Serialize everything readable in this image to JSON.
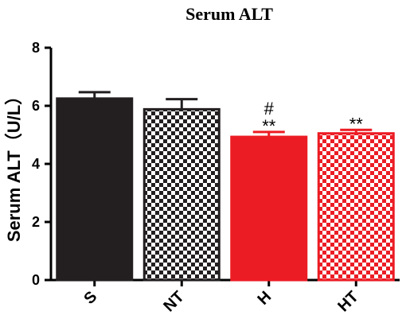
{
  "chart_data": {
    "type": "bar",
    "title": "Serum ALT",
    "ylabel": "Serum ALT（U/L）",
    "xlabel": "",
    "ylim": [
      0,
      8
    ],
    "yticks": [
      "0",
      "2",
      "4",
      "6",
      "8"
    ],
    "categories": [
      "S",
      "NT",
      "H",
      "HT"
    ],
    "values": [
      6.25,
      5.88,
      4.93,
      5.05
    ],
    "errors": [
      0.22,
      0.35,
      0.17,
      0.12
    ],
    "fills": [
      "solid",
      "checker",
      "solid",
      "checker"
    ],
    "colors": [
      "#231f20",
      "#231f20",
      "#ec1c24",
      "#ec1c24"
    ],
    "annotations": [
      {
        "category": "H",
        "lines": [
          "#",
          "**"
        ]
      },
      {
        "category": "HT",
        "lines": [
          "**"
        ]
      }
    ],
    "grid": false
  }
}
